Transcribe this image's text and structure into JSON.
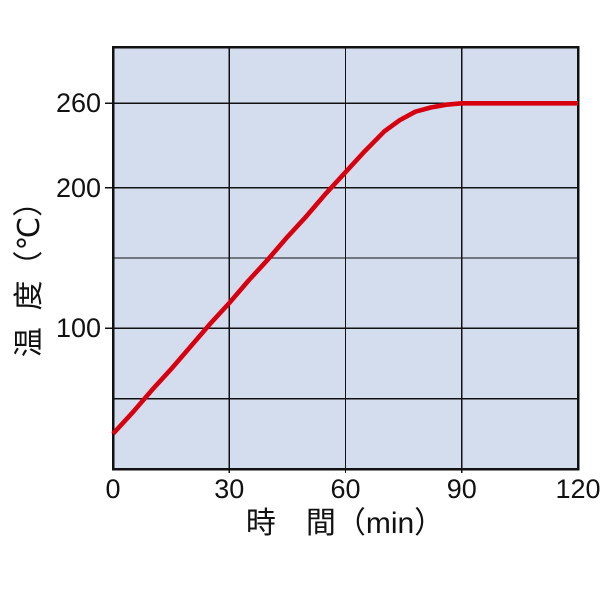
{
  "chart_data": {
    "type": "line",
    "title": "",
    "xlabel": "時　間（min）",
    "ylabel": "温  度（℃）",
    "xlim": [
      0,
      120
    ],
    "ylim": [
      0,
      300
    ],
    "x_ticks": [
      0,
      30,
      60,
      90,
      120
    ],
    "y_ticks": [
      260,
      200,
      100
    ],
    "x_gridlines": [
      30,
      60,
      90
    ],
    "y_gridlines": [
      50,
      100,
      150,
      200,
      260
    ],
    "x_tick_marks": [
      30,
      60,
      90
    ],
    "grid": true,
    "legend_position": "none",
    "plot_bg_color": "#d4ddee",
    "line_color": "#d7000f",
    "axis_color": "#111111",
    "series": [
      {
        "points": [
          [
            0,
            25
          ],
          [
            5,
            40
          ],
          [
            10,
            56
          ],
          [
            15,
            71
          ],
          [
            20,
            87
          ],
          [
            25,
            103
          ],
          [
            30,
            118
          ],
          [
            35,
            134
          ],
          [
            40,
            149
          ],
          [
            45,
            165
          ],
          [
            50,
            180
          ],
          [
            55,
            196
          ],
          [
            60,
            211
          ],
          [
            65,
            226
          ],
          [
            70,
            240
          ],
          [
            74,
            248
          ],
          [
            78,
            254
          ],
          [
            82,
            257
          ],
          [
            86,
            259
          ],
          [
            90,
            260
          ],
          [
            95,
            260
          ],
          [
            100,
            260
          ],
          [
            105,
            260
          ],
          [
            110,
            260
          ],
          [
            115,
            260
          ],
          [
            120,
            260
          ]
        ]
      }
    ]
  }
}
